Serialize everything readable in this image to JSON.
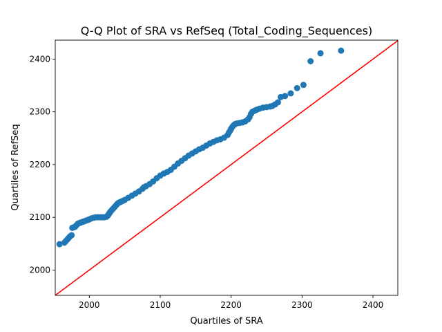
{
  "chart_data": {
    "type": "scatter",
    "title": "Q-Q Plot of SRA vs RefSeq (Total_Coding_Sequences)",
    "xlabel": "Quartiles of SRA",
    "ylabel": "Quartiles of RefSeq",
    "xlim": [
      1952,
      2435
    ],
    "ylim": [
      1952,
      2436
    ],
    "xticks": [
      2000,
      2100,
      2200,
      2300,
      2400
    ],
    "yticks": [
      2000,
      2100,
      2200,
      2300,
      2400
    ],
    "grid": false,
    "legend": "none",
    "colors": {
      "points": "#1f77b4",
      "reference_line": "#ff0000",
      "axes": "#000000"
    },
    "reference_line": {
      "label": "",
      "slope": 1,
      "intercept": 0
    },
    "series": [
      {
        "x": [
          1958,
          1965,
          1967,
          1969,
          1971,
          1973,
          1975,
          1976,
          1978,
          1980,
          1982,
          1984,
          1986,
          1988,
          1990,
          1992,
          1994,
          1996,
          1998,
          2000,
          2003,
          2006,
          2009,
          2012,
          2015,
          2018,
          2021,
          2024,
          2026,
          2027,
          2028,
          2029,
          2030,
          2032,
          2034,
          2036,
          2038,
          2040,
          2042,
          2044,
          2047,
          2050,
          2055,
          2060,
          2065,
          2070,
          2075,
          2077,
          2080,
          2085,
          2090,
          2095,
          2100,
          2105,
          2110,
          2115,
          2120,
          2125,
          2130,
          2135,
          2140,
          2145,
          2150,
          2155,
          2160,
          2165,
          2170,
          2175,
          2180,
          2185,
          2190,
          2195,
          2197,
          2199,
          2200,
          2202,
          2204,
          2206,
          2208,
          2212,
          2216,
          2220,
          2224,
          2226,
          2228,
          2230,
          2233,
          2236,
          2240,
          2245,
          2250,
          2255,
          2258,
          2262,
          2266,
          2270,
          2276,
          2284,
          2293,
          2302,
          2312,
          2326,
          2355
        ],
        "y": [
          2049,
          2052,
          2055,
          2058,
          2061,
          2064,
          2066,
          2080,
          2081,
          2082,
          2085,
          2088,
          2089,
          2090,
          2091,
          2092,
          2093,
          2094,
          2095,
          2096,
          2098,
          2099,
          2100,
          2100,
          2100,
          2100,
          2100,
          2101,
          2103,
          2105,
          2107,
          2109,
          2111,
          2114,
          2117,
          2120,
          2123,
          2126,
          2128,
          2129,
          2131,
          2133,
          2137,
          2141,
          2145,
          2149,
          2154,
          2157,
          2159,
          2163,
          2168,
          2174,
          2179,
          2183,
          2186,
          2190,
          2196,
          2202,
          2207,
          2212,
          2217,
          2221,
          2225,
          2229,
          2232,
          2236,
          2240,
          2243,
          2246,
          2248,
          2251,
          2256,
          2261,
          2265,
          2268,
          2272,
          2275,
          2277,
          2278,
          2279,
          2280,
          2282,
          2286,
          2290,
          2296,
          2300,
          2302,
          2304,
          2306,
          2308,
          2309,
          2310,
          2311,
          2314,
          2318,
          2328,
          2330,
          2335,
          2345,
          2351,
          2396,
          2411,
          2416
        ]
      }
    ]
  }
}
